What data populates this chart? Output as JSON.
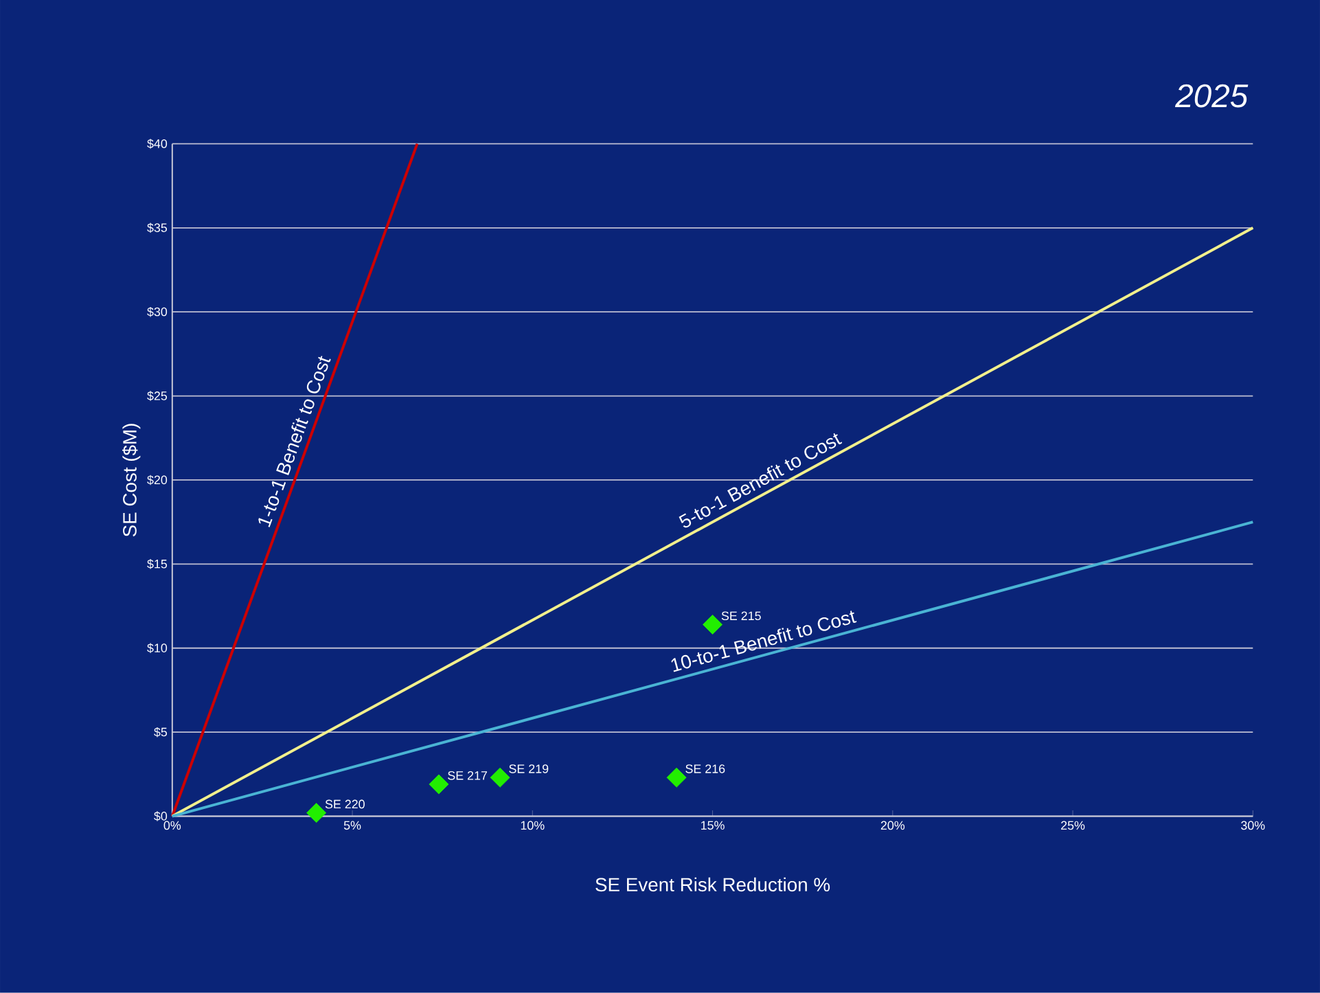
{
  "chart_data": {
    "type": "scatter",
    "title": "2025",
    "xlabel": "SE Event Risk Reduction %",
    "ylabel": "SE Cost ($M)",
    "xlim": [
      0,
      30
    ],
    "ylim": [
      0,
      40
    ],
    "xticks": [
      {
        "value": 0,
        "label": "0%"
      },
      {
        "value": 5,
        "label": "5%"
      },
      {
        "value": 10,
        "label": "10%"
      },
      {
        "value": 15,
        "label": "15%"
      },
      {
        "value": 20,
        "label": "20%"
      },
      {
        "value": 25,
        "label": "25%"
      },
      {
        "value": 30,
        "label": "30%"
      }
    ],
    "yticks": [
      {
        "value": 0,
        "label": "$0"
      },
      {
        "value": 5,
        "label": "$5"
      },
      {
        "value": 10,
        "label": "$10"
      },
      {
        "value": 15,
        "label": "$15"
      },
      {
        "value": 20,
        "label": "$20"
      },
      {
        "value": 25,
        "label": "$25"
      },
      {
        "value": 30,
        "label": "$30"
      },
      {
        "value": 35,
        "label": "$35"
      },
      {
        "value": 40,
        "label": "$40"
      }
    ],
    "grid": "y",
    "series": [
      {
        "type": "line",
        "name": "1-to-1 Benefit to Cost",
        "color": "#cc0000",
        "x": [
          0,
          6.8
        ],
        "values": [
          0,
          40
        ],
        "marker": "none"
      },
      {
        "type": "line",
        "name": "5-to-1 Benefit to Cost",
        "color": "#f2f08c",
        "x": [
          0,
          30
        ],
        "values": [
          0,
          35
        ],
        "marker": "none"
      },
      {
        "type": "line",
        "name": "10-to-1 Benefit to Cost",
        "color": "#4ab4d4",
        "x": [
          0,
          30
        ],
        "values": [
          0,
          17.5
        ],
        "marker": "none"
      },
      {
        "color": "#22ee00",
        "x": [
          4.0,
          7.4,
          9.1,
          14.0,
          15.0
        ],
        "values": [
          0.2,
          1.9,
          2.3,
          2.3,
          11.4
        ],
        "marker": "diamond"
      }
    ],
    "annotations": [
      {
        "text": "SE 220",
        "x": 4.0,
        "y": 0.2
      },
      {
        "text": "SE 217",
        "x": 7.4,
        "y": 1.9
      },
      {
        "text": "SE 219",
        "x": 9.1,
        "y": 2.3
      },
      {
        "text": "SE 216",
        "x": 14.0,
        "y": 2.3
      },
      {
        "text": "SE 215",
        "x": 15.0,
        "y": 11.4
      }
    ]
  }
}
